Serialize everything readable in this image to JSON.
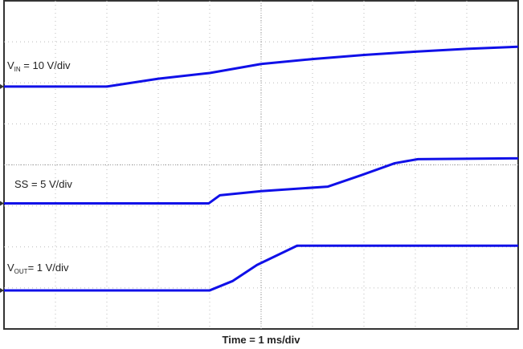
{
  "chart_data": {
    "type": "line",
    "x_label": "Time = 1 ms/div",
    "xlim": [
      0,
      10
    ],
    "ylim": [
      0,
      8
    ],
    "grid": true,
    "color": "#1010e8",
    "series": [
      {
        "name": "V",
        "name_sub": "IN",
        "name_rest": " = 10 V/div",
        "x": [
          0,
          2,
          3,
          4,
          5,
          6,
          7,
          8,
          9,
          10
        ],
        "values": [
          5.91,
          5.91,
          6.1,
          6.24,
          6.46,
          6.58,
          6.68,
          6.76,
          6.83,
          6.88
        ]
      },
      {
        "name": "SS = 5 V/div",
        "x": [
          0,
          3.98,
          4.2,
          5,
          6.3,
          6.95,
          7.6,
          8.05,
          10
        ],
        "values": [
          3.06,
          3.06,
          3.26,
          3.36,
          3.47,
          3.75,
          4.04,
          4.14,
          4.16
        ]
      },
      {
        "name": "V",
        "name_sub": "OUT",
        "name_rest": "= 1 V/div",
        "x": [
          0,
          4,
          4.45,
          4.92,
          5.7,
          10
        ],
        "values": [
          0.94,
          0.94,
          1.17,
          1.56,
          2.03,
          2.03
        ]
      }
    ]
  }
}
